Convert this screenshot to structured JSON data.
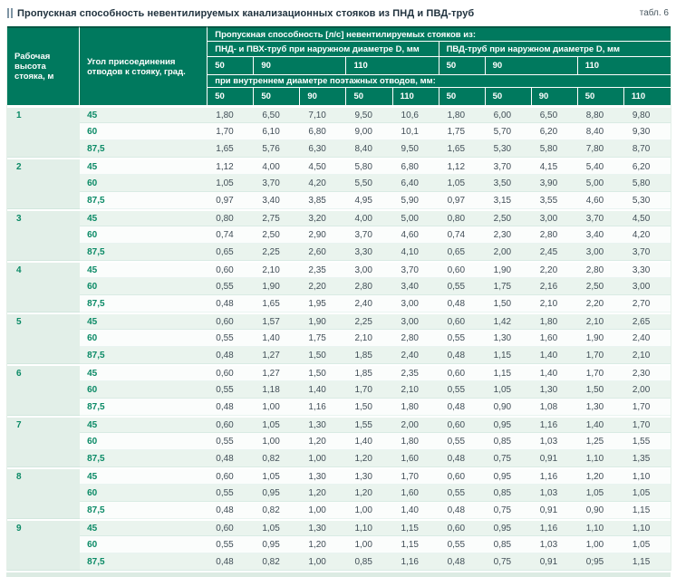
{
  "page": {
    "title": "Пропускная способность невентилируемых канализационных стояков из ПНД и ПВД-труб",
    "table_label": "табл. 6"
  },
  "colors": {
    "header_bg": "#00795e",
    "header_top_border": "#045844",
    "header_divider": "#ffffff",
    "accent_green": "#0b8a66",
    "row_tint": "#eaf4ee",
    "row_plain": "#fbfdfc",
    "height_col_bg": "#e2efe8",
    "data_text": "#414e57",
    "title_text": "#21333f",
    "label_text": "#48575f",
    "marker": "#7f95a4",
    "bottom_strip": "#dcebe3"
  },
  "table": {
    "header": {
      "col_height": "Рабочая высота стояка, м",
      "col_angle": "Угол присоединения отводов к стояку, град.",
      "capacity_title": "Пропускная способность [л/с] невентилируемых стояков из:",
      "group_pnd": "ПНД- и ПВХ-труб при наружном диаметре D, мм",
      "group_pvd": "ПВД-труб при наружном диаметре D, мм",
      "outer_diameters_pnd": [
        "50",
        "90",
        "110"
      ],
      "outer_diameters_pvd": [
        "50",
        "90",
        "110"
      ],
      "inner_note": "при внутреннем диаметре поэтажных отводов, мм:",
      "inner_diameters": [
        "50",
        "50",
        "90",
        "50",
        "110",
        "50",
        "50",
        "90",
        "50",
        "110"
      ]
    },
    "groups": [
      {
        "height": "1",
        "rows": [
          {
            "angle": "45",
            "values": [
              "1,80",
              "6,50",
              "7,10",
              "9,50",
              "10,6",
              "1,80",
              "6,00",
              "6,50",
              "8,80",
              "9,80"
            ]
          },
          {
            "angle": "60",
            "values": [
              "1,70",
              "6,10",
              "6,80",
              "9,00",
              "10,1",
              "1,75",
              "5,70",
              "6,20",
              "8,40",
              "9,30"
            ]
          },
          {
            "angle": "87,5",
            "values": [
              "1,65",
              "5,76",
              "6,30",
              "8,40",
              "9,50",
              "1,65",
              "5,30",
              "5,80",
              "7,80",
              "8,70"
            ]
          }
        ]
      },
      {
        "height": "2",
        "rows": [
          {
            "angle": "45",
            "values": [
              "1,12",
              "4,00",
              "4,50",
              "5,80",
              "6,80",
              "1,12",
              "3,70",
              "4,15",
              "5,40",
              "6,20"
            ]
          },
          {
            "angle": "60",
            "values": [
              "1,05",
              "3,70",
              "4,20",
              "5,50",
              "6,40",
              "1,05",
              "3,50",
              "3,90",
              "5,00",
              "5,80"
            ]
          },
          {
            "angle": "87,5",
            "values": [
              "0,97",
              "3,40",
              "3,85",
              "4,95",
              "5,90",
              "0,97",
              "3,15",
              "3,55",
              "4,60",
              "5,30"
            ]
          }
        ]
      },
      {
        "height": "3",
        "rows": [
          {
            "angle": "45",
            "values": [
              "0,80",
              "2,75",
              "3,20",
              "4,00",
              "5,00",
              "0,80",
              "2,50",
              "3,00",
              "3,70",
              "4,50"
            ]
          },
          {
            "angle": "60",
            "values": [
              "0,74",
              "2,50",
              "2,90",
              "3,70",
              "4,60",
              "0,74",
              "2,30",
              "2,80",
              "3,40",
              "4,20"
            ]
          },
          {
            "angle": "87,5",
            "values": [
              "0,65",
              "2,25",
              "2,60",
              "3,30",
              "4,10",
              "0,65",
              "2,00",
              "2,45",
              "3,00",
              "3,70"
            ]
          }
        ]
      },
      {
        "height": "4",
        "rows": [
          {
            "angle": "45",
            "values": [
              "0,60",
              "2,10",
              "2,35",
              "3,00",
              "3,70",
              "0,60",
              "1,90",
              "2,20",
              "2,80",
              "3,30"
            ]
          },
          {
            "angle": "60",
            "values": [
              "0,55",
              "1,90",
              "2,20",
              "2,80",
              "3,40",
              "0,55",
              "1,75",
              "2,16",
              "2,50",
              "3,00"
            ]
          },
          {
            "angle": "87,5",
            "values": [
              "0,48",
              "1,65",
              "1,95",
              "2,40",
              "3,00",
              "0,48",
              "1,50",
              "2,10",
              "2,20",
              "2,70"
            ]
          }
        ]
      },
      {
        "height": "5",
        "rows": [
          {
            "angle": "45",
            "values": [
              "0,60",
              "1,57",
              "1,90",
              "2,25",
              "3,00",
              "0,60",
              "1,42",
              "1,80",
              "2,10",
              "2,65"
            ]
          },
          {
            "angle": "60",
            "values": [
              "0,55",
              "1,40",
              "1,75",
              "2,10",
              "2,80",
              "0,55",
              "1,30",
              "1,60",
              "1,90",
              "2,40"
            ]
          },
          {
            "angle": "87,5",
            "values": [
              "0,48",
              "1,27",
              "1,50",
              "1,85",
              "2,40",
              "0,48",
              "1,15",
              "1,40",
              "1,70",
              "2,10"
            ]
          }
        ]
      },
      {
        "height": "6",
        "rows": [
          {
            "angle": "45",
            "values": [
              "0,60",
              "1,27",
              "1,50",
              "1,85",
              "2,35",
              "0,60",
              "1,15",
              "1,40",
              "1,70",
              "2,30"
            ]
          },
          {
            "angle": "60",
            "values": [
              "0,55",
              "1,18",
              "1,40",
              "1,70",
              "2,10",
              "0,55",
              "1,05",
              "1,30",
              "1,50",
              "2,00"
            ]
          },
          {
            "angle": "87,5",
            "values": [
              "0,48",
              "1,00",
              "1,16",
              "1,50",
              "1,80",
              "0,48",
              "0,90",
              "1,08",
              "1,30",
              "1,70"
            ]
          }
        ]
      },
      {
        "height": "7",
        "rows": [
          {
            "angle": "45",
            "values": [
              "0,60",
              "1,05",
              "1,30",
              "1,55",
              "2,00",
              "0,60",
              "0,95",
              "1,16",
              "1,40",
              "1,70"
            ]
          },
          {
            "angle": "60",
            "values": [
              "0,55",
              "1,00",
              "1,20",
              "1,40",
              "1,80",
              "0,55",
              "0,85",
              "1,03",
              "1,25",
              "1,55"
            ]
          },
          {
            "angle": "87,5",
            "values": [
              "0,48",
              "0,82",
              "1,00",
              "1,20",
              "1,60",
              "0,48",
              "0,75",
              "0,91",
              "1,10",
              "1,35"
            ]
          }
        ]
      },
      {
        "height": "8",
        "rows": [
          {
            "angle": "45",
            "values": [
              "0,60",
              "1,05",
              "1,30",
              "1,30",
              "1,70",
              "0,60",
              "0,95",
              "1,16",
              "1,20",
              "1,10"
            ]
          },
          {
            "angle": "60",
            "values": [
              "0,55",
              "0,95",
              "1,20",
              "1,20",
              "1,60",
              "0,55",
              "0,85",
              "1,03",
              "1,05",
              "1,05"
            ]
          },
          {
            "angle": "87,5",
            "values": [
              "0,48",
              "0,82",
              "1,00",
              "1,00",
              "1,40",
              "0,48",
              "0,75",
              "0,91",
              "0,90",
              "1,15"
            ]
          }
        ]
      },
      {
        "height": "9",
        "rows": [
          {
            "angle": "45",
            "values": [
              "0,60",
              "1,05",
              "1,30",
              "1,10",
              "1,15",
              "0,60",
              "0,95",
              "1,16",
              "1,10",
              "1,10"
            ]
          },
          {
            "angle": "60",
            "values": [
              "0,55",
              "0,95",
              "1,20",
              "1,00",
              "1,15",
              "0,55",
              "0,85",
              "1,03",
              "1,00",
              "1,05"
            ]
          },
          {
            "angle": "87,5",
            "values": [
              "0,48",
              "0,82",
              "1,00",
              "0,85",
              "1,16",
              "0,48",
              "0,75",
              "0,91",
              "0;95",
              "1,15"
            ]
          }
        ]
      }
    ]
  }
}
